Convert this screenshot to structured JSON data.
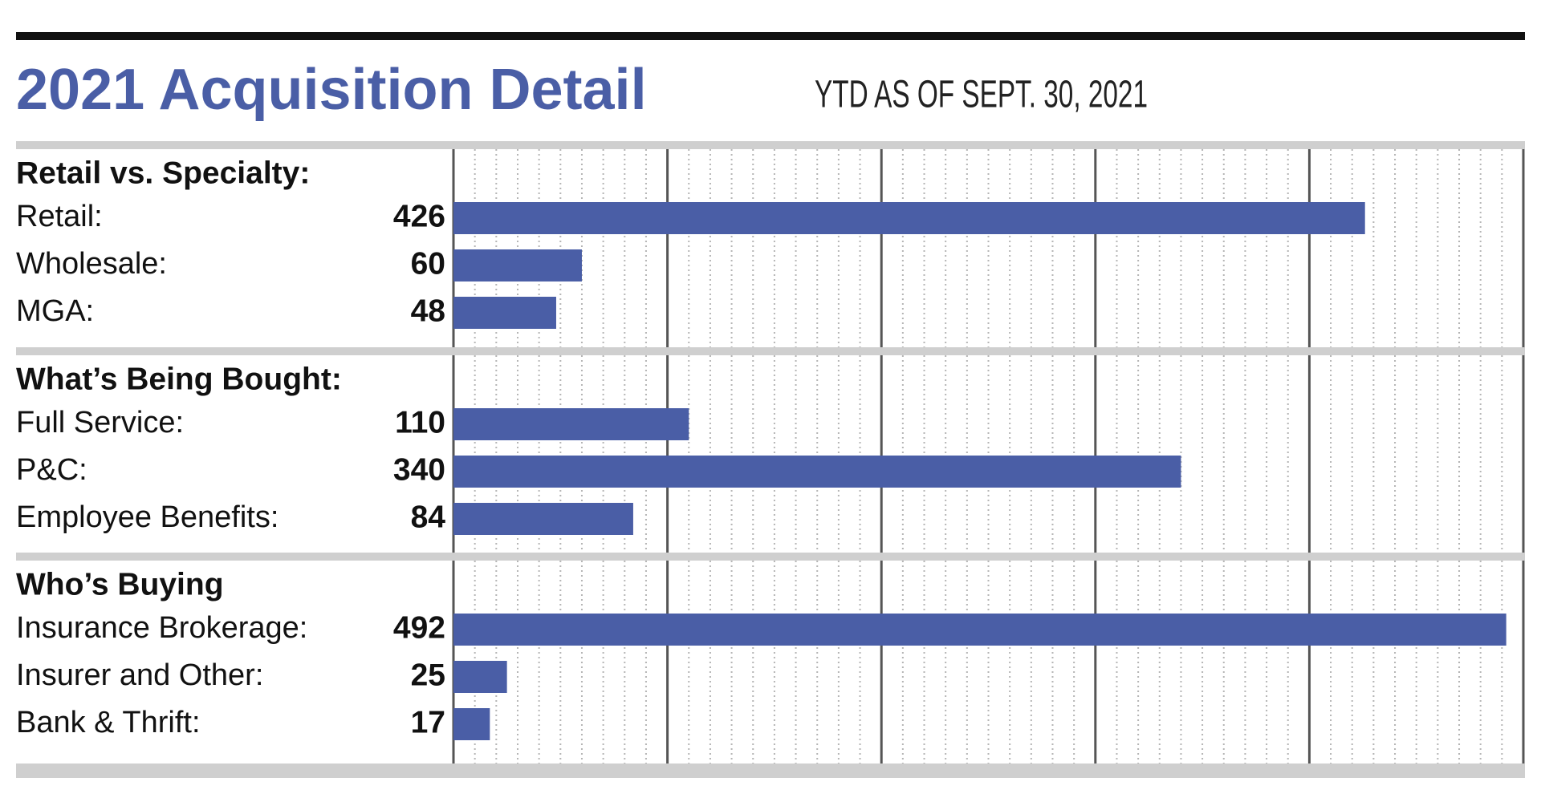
{
  "chart_data": {
    "type": "bar",
    "title": "2021 Acquisition Detail",
    "subtitle": "YTD AS OF SEPT. 30, 2021",
    "color": "#4a5ea6",
    "xlim": [
      0,
      500
    ],
    "xticks": [
      0,
      100,
      200,
      300,
      400,
      500
    ],
    "minor_xticks": [
      0,
      10,
      20,
      30,
      40,
      50,
      60,
      70,
      80,
      90,
      100,
      110,
      120,
      130,
      140,
      150,
      160,
      170,
      180,
      190,
      200,
      210,
      220,
      230,
      240,
      250,
      260,
      270,
      280,
      290,
      300,
      310,
      320,
      330,
      340,
      350,
      360,
      370,
      380,
      390,
      400,
      410,
      420,
      430,
      440,
      450,
      460,
      470,
      480,
      490,
      500
    ],
    "grid": true,
    "groups": [
      {
        "name": "Retail vs. Specialty:",
        "categories": [
          "Retail:",
          "Wholesale:",
          "MGA:"
        ],
        "values": [
          426,
          60,
          48
        ]
      },
      {
        "name": "What’s Being Bought:",
        "categories": [
          "Full Service:",
          "P&C:",
          "Employee Benefits:"
        ],
        "values": [
          110,
          340,
          84
        ]
      },
      {
        "name": "Who’s Buying",
        "categories": [
          "Insurance Brokerage:",
          "Insurer and Other:",
          "Bank & Thrift:"
        ],
        "values": [
          492,
          25,
          17
        ]
      }
    ]
  }
}
